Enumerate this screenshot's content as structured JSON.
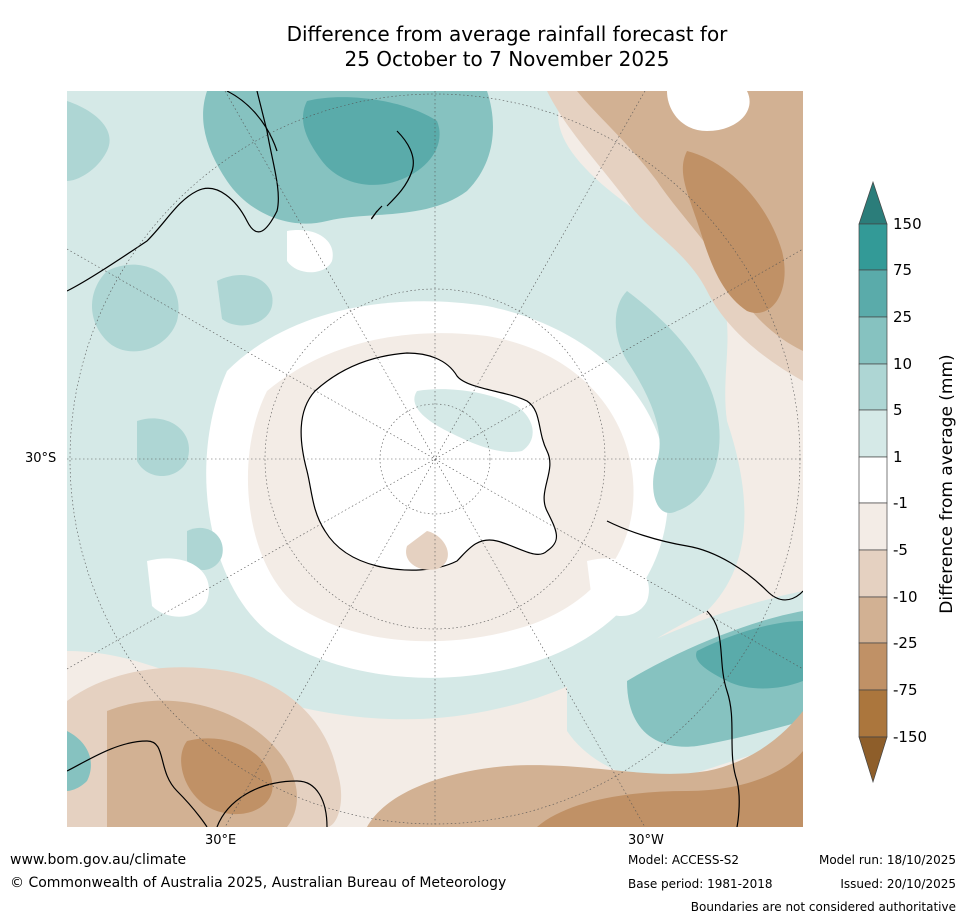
{
  "title": {
    "line1": "Difference from average rainfall forecast for",
    "line2": "25 October to 7 November 2025"
  },
  "map": {
    "lat_label": "30°S",
    "lon_labels": [
      "30°E",
      "30°W"
    ]
  },
  "colorbar": {
    "label": "Difference from average (mm)",
    "ticks": [
      "150",
      "75",
      "25",
      "10",
      "5",
      "1",
      "-1",
      "-5",
      "-10",
      "-25",
      "-75",
      "-150"
    ],
    "colors": {
      "gt150": "#2b7d7a",
      "75_150": "#339a97",
      "25_75": "#5aabaa",
      "10_25": "#86c2c0",
      "5_10": "#aed6d4",
      "1_5": "#d5e9e7",
      "neutral": "#ffffff",
      "m5_m1": "#f3ece6",
      "m10_m5": "#e5d1c1",
      "m25_m10": "#d2b193",
      "m75_m25": "#c09166",
      "m150_m75": "#ab763d",
      "lt_m150": "#8e5e2a"
    }
  },
  "footer": {
    "website": "www.bom.gov.au/climate",
    "copyright": "© Commonwealth of Australia 2025, Australian Bureau of Meteorology",
    "model": "Model: ACCESS-S2",
    "base_period": "Base period: 1981-2018",
    "model_run": "Model run: 18/10/2025",
    "issued": "Issued: 20/10/2025",
    "disclaimer": "Boundaries are not considered authoritative"
  }
}
